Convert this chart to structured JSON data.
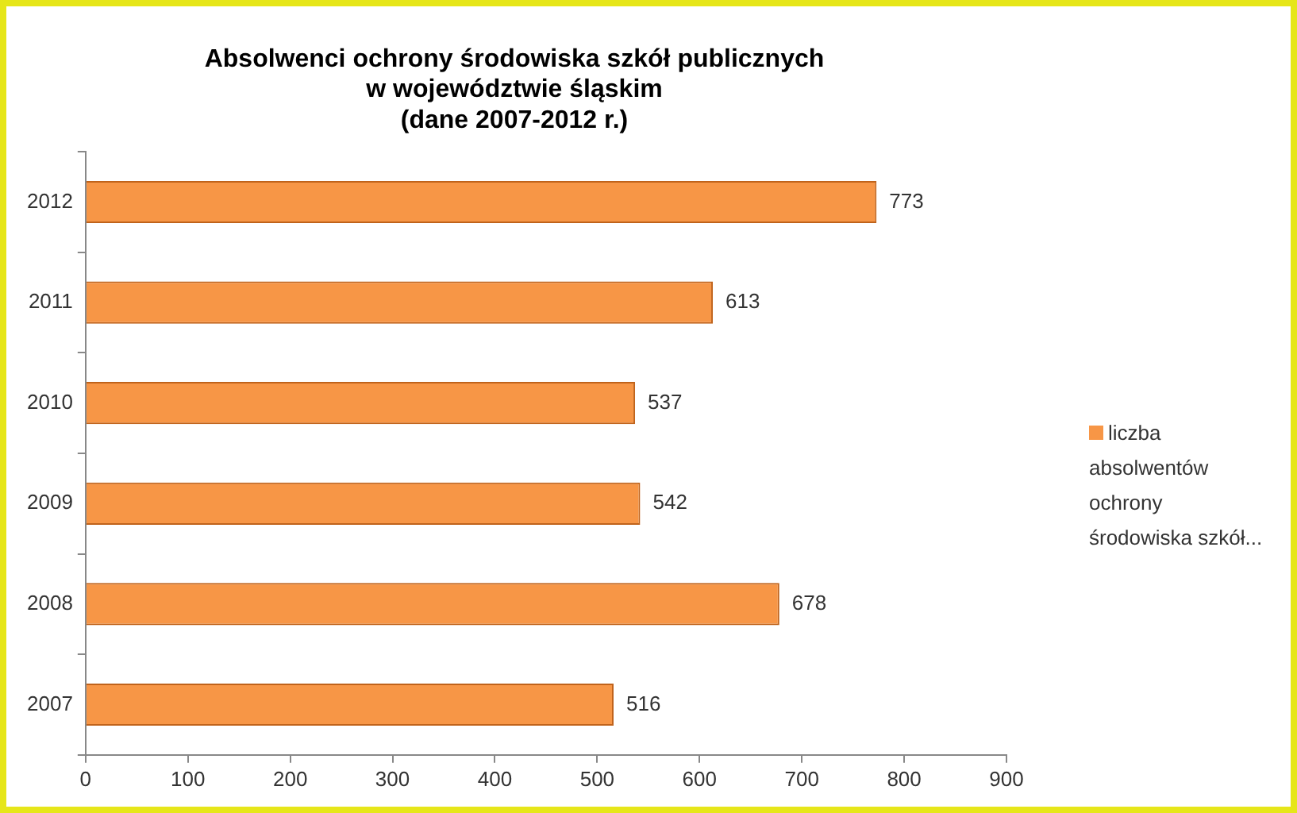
{
  "chart_data": {
    "type": "bar",
    "orientation": "horizontal",
    "title": "Absolwenci ochrony środowiska szkół publicznych\nw województwie śląskim\n(dane 2007-2012 r.)",
    "categories": [
      "2012",
      "2011",
      "2010",
      "2009",
      "2008",
      "2007"
    ],
    "series": [
      {
        "name": "liczba absolwentów ochrony środowiska szkół...",
        "color": "#f79646",
        "values": [
          773,
          613,
          537,
          542,
          678,
          516
        ]
      }
    ],
    "xlim": [
      0,
      900
    ],
    "xticks": [
      0,
      100,
      200,
      300,
      400,
      500,
      600,
      700,
      800,
      900
    ],
    "data_labels": true,
    "grid": false,
    "legend": "right"
  }
}
